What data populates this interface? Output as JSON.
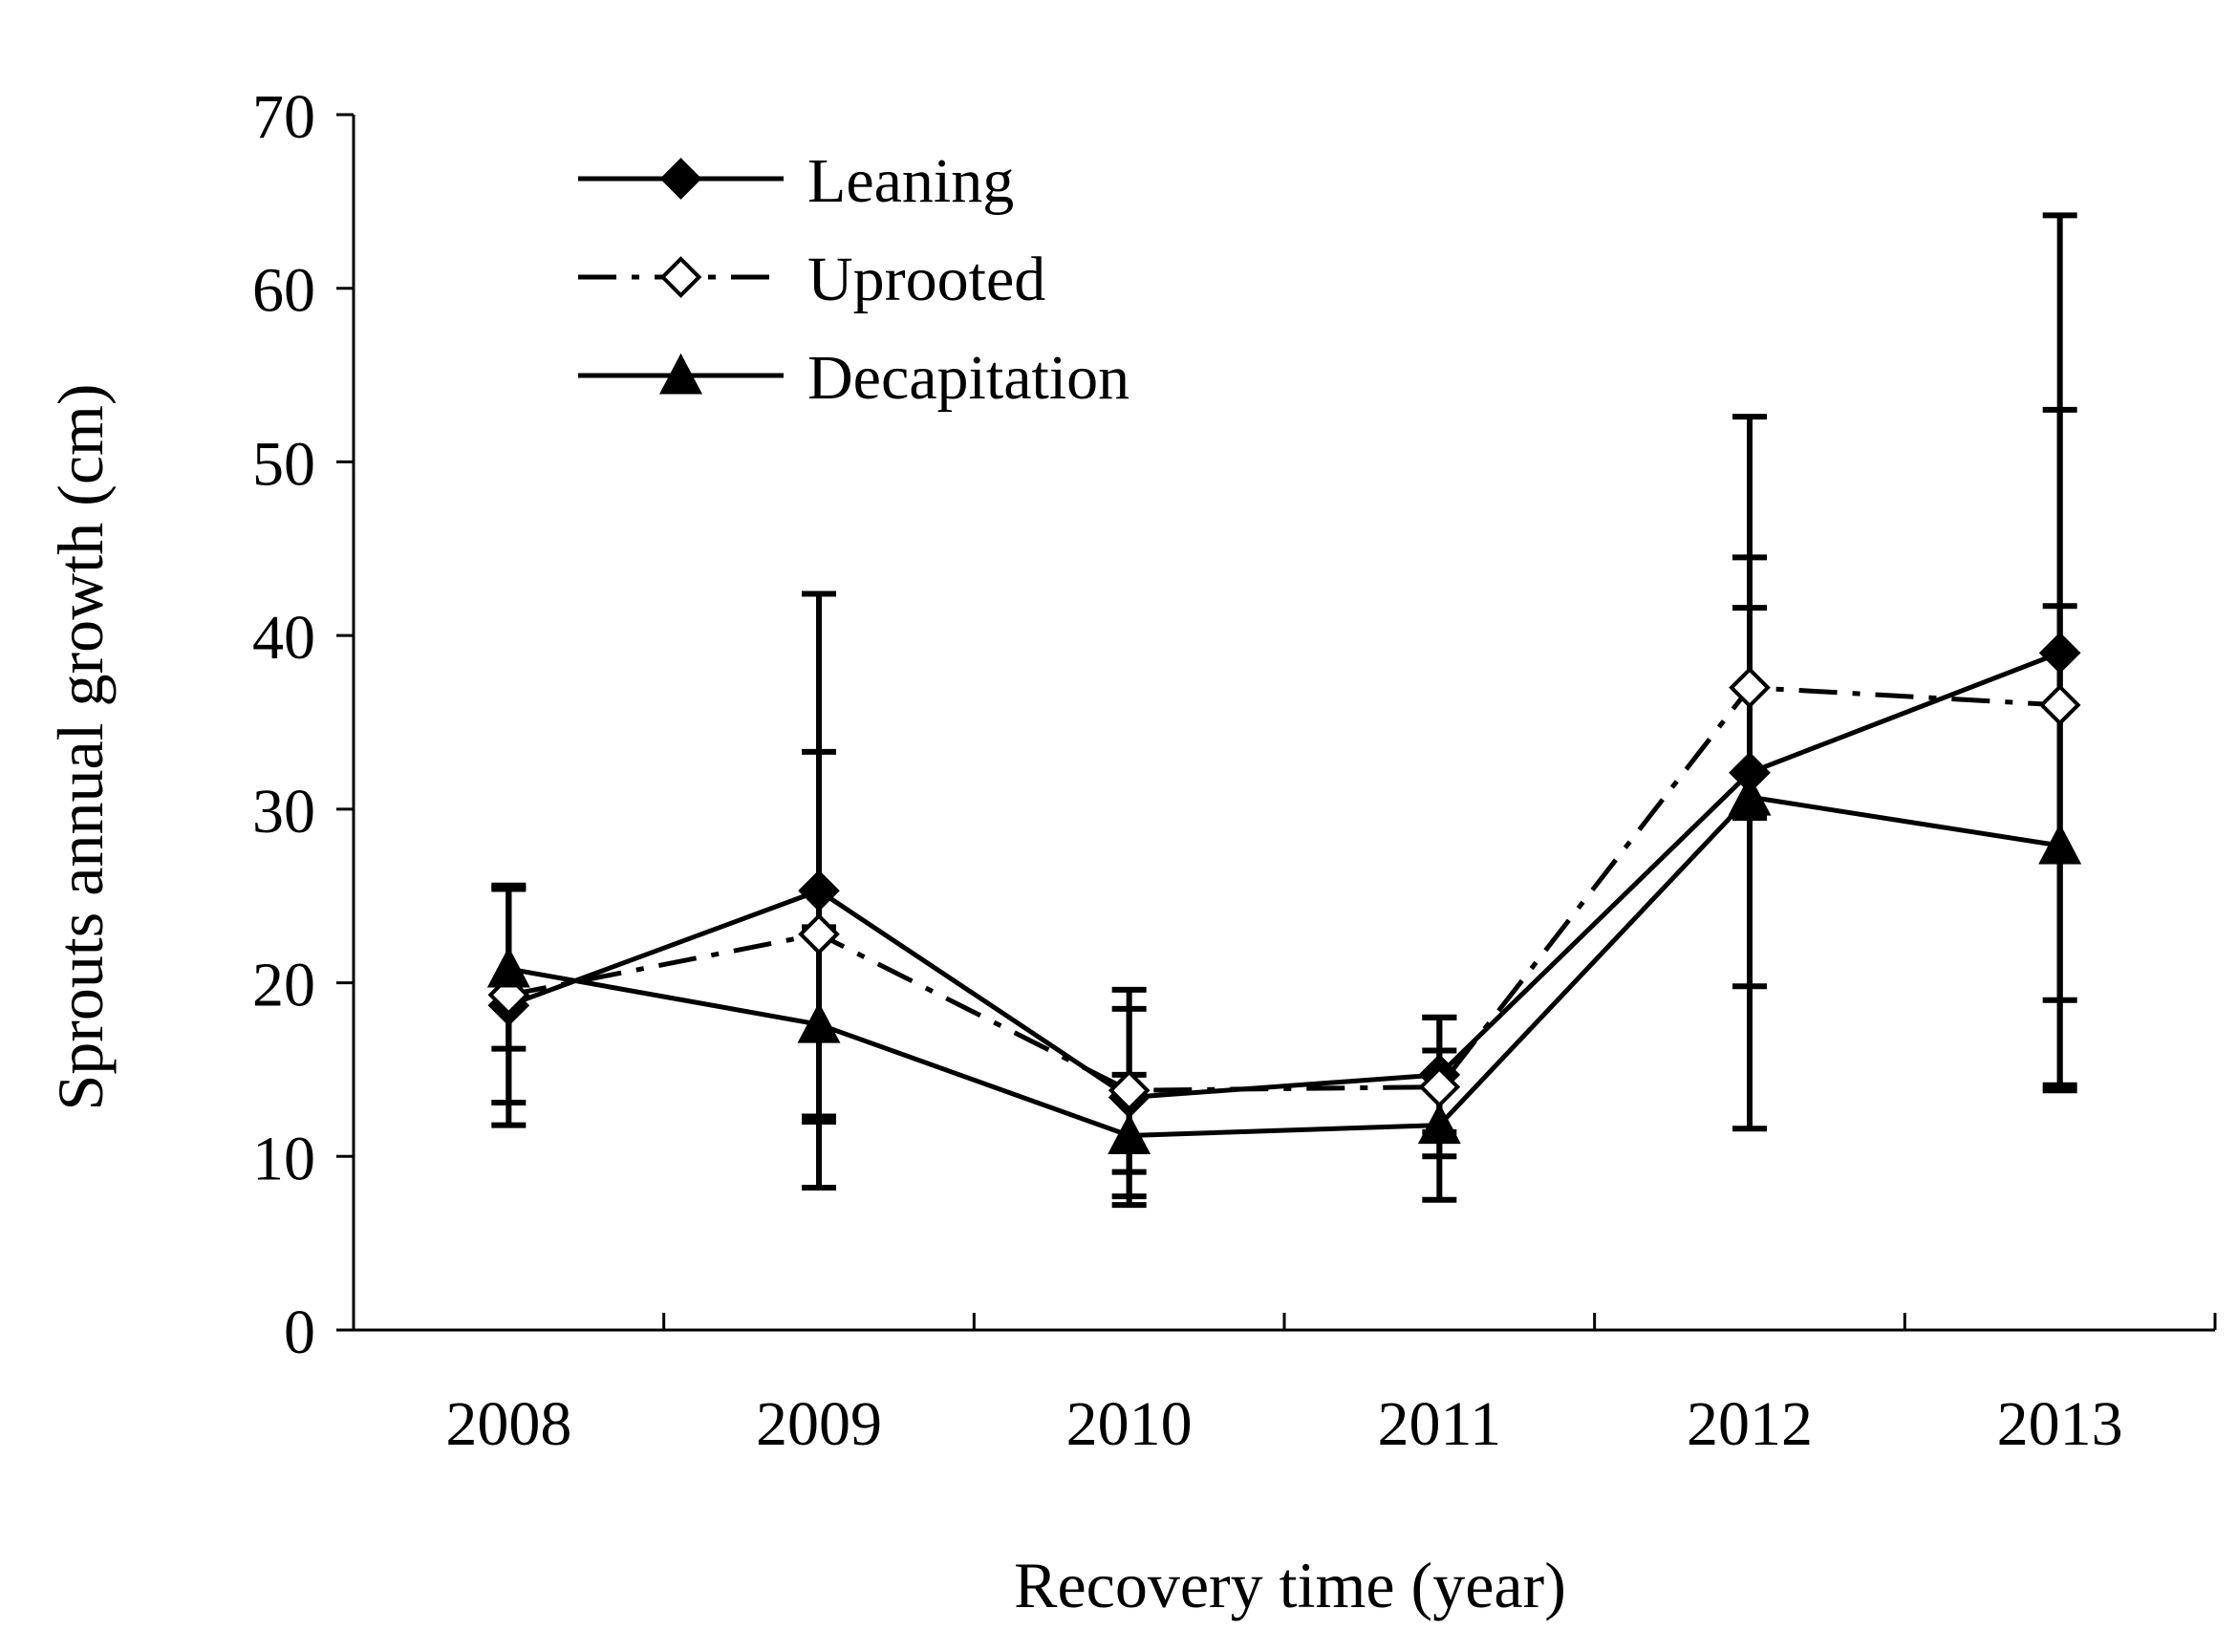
{
  "chart_data": {
    "type": "line",
    "title": "",
    "xlabel": "Recovery time (year)",
    "ylabel": "Sprouts annual growth (cm)",
    "ylim": [
      0,
      70
    ],
    "yticks": [
      0,
      10,
      20,
      30,
      40,
      50,
      60,
      70
    ],
    "categories": [
      "2008",
      "2009",
      "2010",
      "2011",
      "2012",
      "2013"
    ],
    "legend_position": "top-left",
    "series": [
      {
        "name": "Leaning",
        "marker": "diamond-filled",
        "line": "solid",
        "values": [
          18.7,
          25.3,
          13.4,
          14.7,
          32.1,
          39.0
        ],
        "error": [
          6.9,
          17.1,
          6.2,
          3.3,
          20.5,
          25.2
        ]
      },
      {
        "name": "Uprooted",
        "marker": "diamond-open",
        "line": "dash-dot",
        "values": [
          19.3,
          22.8,
          13.8,
          14.0,
          37.0,
          36.0
        ],
        "error": [
          6.2,
          10.5,
          4.7,
          4.0,
          7.5,
          17.0
        ]
      },
      {
        "name": "Decapitation",
        "marker": "triangle-filled",
        "line": "solid",
        "values": [
          20.8,
          17.6,
          11.2,
          11.8,
          30.7,
          27.9
        ],
        "error": [
          4.6,
          5.6,
          3.5,
          4.3,
          10.9,
          13.8
        ]
      }
    ]
  }
}
